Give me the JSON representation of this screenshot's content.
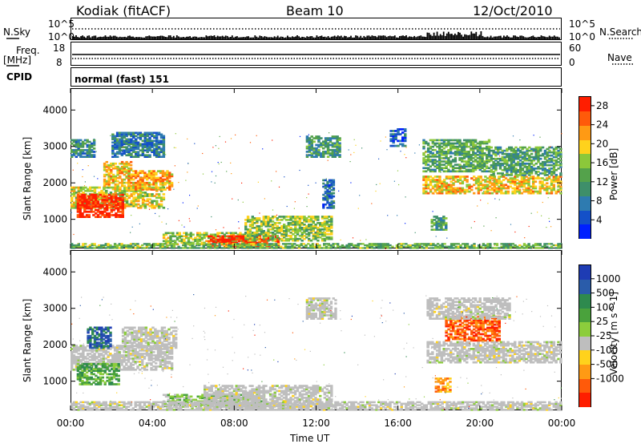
{
  "header": {
    "site": "Kodiak (fitACF)",
    "beam": "Beam 10",
    "date": "12/Oct/2010"
  },
  "strip_labels": {
    "n_sky": "N.Sky",
    "n_search": "N.Search",
    "freq": "Freq.",
    "freq_unit": "[MHz]",
    "nave": "Nave",
    "cpid": "CPID",
    "cpid_value": "normal (fast) 151",
    "noise_ticks_left": [
      "10^5",
      "10^0"
    ],
    "noise_ticks_right": [
      "10^5",
      "10^0"
    ],
    "freq_ticks": [
      "18",
      "8"
    ],
    "nave_ticks": [
      "60",
      "0"
    ]
  },
  "colors": {
    "power": [
      "#0020ff",
      "#1450c8",
      "#2e7bb0",
      "#3e8f6a",
      "#54a24b",
      "#8cc83a",
      "#ffd21c",
      "#ff9a14",
      "#ff5a0a",
      "#ff1e00"
    ],
    "velocity": [
      "#1e3cb4",
      "#2a5caa",
      "#2e8a4e",
      "#4aa23c",
      "#8ccd3c",
      "#bebebe",
      "#ffd21c",
      "#ff9a14",
      "#ff5a0a",
      "#ff1e00"
    ],
    "ground_scatter": "#bebebe"
  },
  "chart_data": [
    {
      "type": "heatmap",
      "name": "power",
      "xlabel": "",
      "ylabel": "Slant Range [km]",
      "xlim_hours": [
        0,
        24
      ],
      "ylim": [
        200,
        4600
      ],
      "yticks": [
        1000,
        2000,
        3000,
        4000
      ],
      "xticks": [
        "00:00",
        "04:00",
        "08:00",
        "12:00",
        "16:00",
        "20:00",
        "00:00"
      ],
      "colorbar": {
        "label": "Power [dB]",
        "ticks": [
          4,
          8,
          12,
          16,
          20,
          24,
          28
        ],
        "range": [
          0,
          30
        ]
      },
      "regions": [
        {
          "t0": 0.0,
          "t1": 4.6,
          "r0": 1300,
          "r1": 1900,
          "v": 18
        },
        {
          "t0": 0.3,
          "t1": 2.6,
          "r0": 1050,
          "r1": 1700,
          "v": 29
        },
        {
          "t0": 1.6,
          "t1": 3.0,
          "r0": 1900,
          "r1": 2600,
          "v": 20
        },
        {
          "t0": 2.8,
          "t1": 5.0,
          "r0": 1800,
          "r1": 2350,
          "v": 22
        },
        {
          "t0": 0.0,
          "t1": 1.2,
          "r0": 2700,
          "r1": 3200,
          "v": 10
        },
        {
          "t0": 2.0,
          "t1": 4.6,
          "r0": 2700,
          "r1": 3400,
          "v": 8
        },
        {
          "t0": 4.5,
          "t1": 9.0,
          "r0": 300,
          "r1": 650,
          "v": 17
        },
        {
          "t0": 6.7,
          "t1": 10.2,
          "r0": 250,
          "r1": 560,
          "v": 30
        },
        {
          "t0": 8.5,
          "t1": 12.8,
          "r0": 400,
          "r1": 1100,
          "v": 16
        },
        {
          "t0": 11.5,
          "t1": 13.2,
          "r0": 2700,
          "r1": 3300,
          "v": 11
        },
        {
          "t0": 12.3,
          "t1": 12.9,
          "r0": 1300,
          "r1": 2100,
          "v": 7
        },
        {
          "t0": 15.6,
          "t1": 16.4,
          "r0": 3000,
          "r1": 3500,
          "v": 6
        },
        {
          "t0": 17.2,
          "t1": 24.0,
          "r0": 1700,
          "r1": 2200,
          "v": 20
        },
        {
          "t0": 17.2,
          "t1": 20.5,
          "r0": 2300,
          "r1": 3200,
          "v": 13
        },
        {
          "t0": 20.5,
          "t1": 24.0,
          "r0": 2200,
          "r1": 3000,
          "v": 12
        },
        {
          "t0": 17.6,
          "t1": 18.4,
          "r0": 700,
          "r1": 1100,
          "v": 12
        },
        {
          "t0": 0.0,
          "t1": 24.0,
          "r0": 200,
          "r1": 350,
          "v": 14
        }
      ]
    },
    {
      "type": "heatmap",
      "name": "velocity",
      "xlabel": "Time UT",
      "ylabel": "Slant Range [km]",
      "xlim_hours": [
        0,
        24
      ],
      "ylim": [
        200,
        4600
      ],
      "yticks": [
        1000,
        2000,
        3000,
        4000
      ],
      "xticks": [
        "00:00",
        "04:00",
        "08:00",
        "12:00",
        "16:00",
        "20:00",
        "00:00"
      ],
      "colorbar": {
        "label": "Velocity [m s^-1]",
        "ticks": [
          "1000",
          "500",
          "100",
          "25",
          "-25",
          "-100",
          "-500",
          "-1000"
        ]
      },
      "regions": [
        {
          "t0": 0.0,
          "t1": 5.0,
          "r0": 1300,
          "r1": 2000,
          "c": 5
        },
        {
          "t0": 2.5,
          "t1": 5.2,
          "r0": 1900,
          "r1": 2500,
          "c": 5
        },
        {
          "t0": 0.3,
          "t1": 2.4,
          "r0": 900,
          "r1": 1500,
          "c": 3
        },
        {
          "t0": 0.8,
          "t1": 2.0,
          "r0": 1900,
          "r1": 2500,
          "c": 1
        },
        {
          "t0": 4.5,
          "t1": 9.5,
          "r0": 300,
          "r1": 650,
          "c": 4
        },
        {
          "t0": 6.5,
          "t1": 12.8,
          "r0": 250,
          "r1": 900,
          "c": 5
        },
        {
          "t0": 11.5,
          "t1": 13.0,
          "r0": 2700,
          "r1": 3300,
          "c": 5
        },
        {
          "t0": 17.4,
          "t1": 24.0,
          "r0": 1500,
          "r1": 2100,
          "c": 5
        },
        {
          "t0": 18.3,
          "t1": 21.0,
          "r0": 2100,
          "r1": 2800,
          "c": 8
        },
        {
          "t0": 17.4,
          "t1": 21.5,
          "r0": 2700,
          "r1": 3300,
          "c": 5
        },
        {
          "t0": 17.8,
          "t1": 18.6,
          "r0": 700,
          "r1": 1100,
          "c": 7
        },
        {
          "t0": 0.0,
          "t1": 24.0,
          "r0": 200,
          "r1": 450,
          "c": 5
        }
      ]
    }
  ],
  "strips": {
    "n_sky_level": 0.0,
    "n_search_level": 0.35,
    "freq_mhz": 10.5,
    "nave": 30
  }
}
